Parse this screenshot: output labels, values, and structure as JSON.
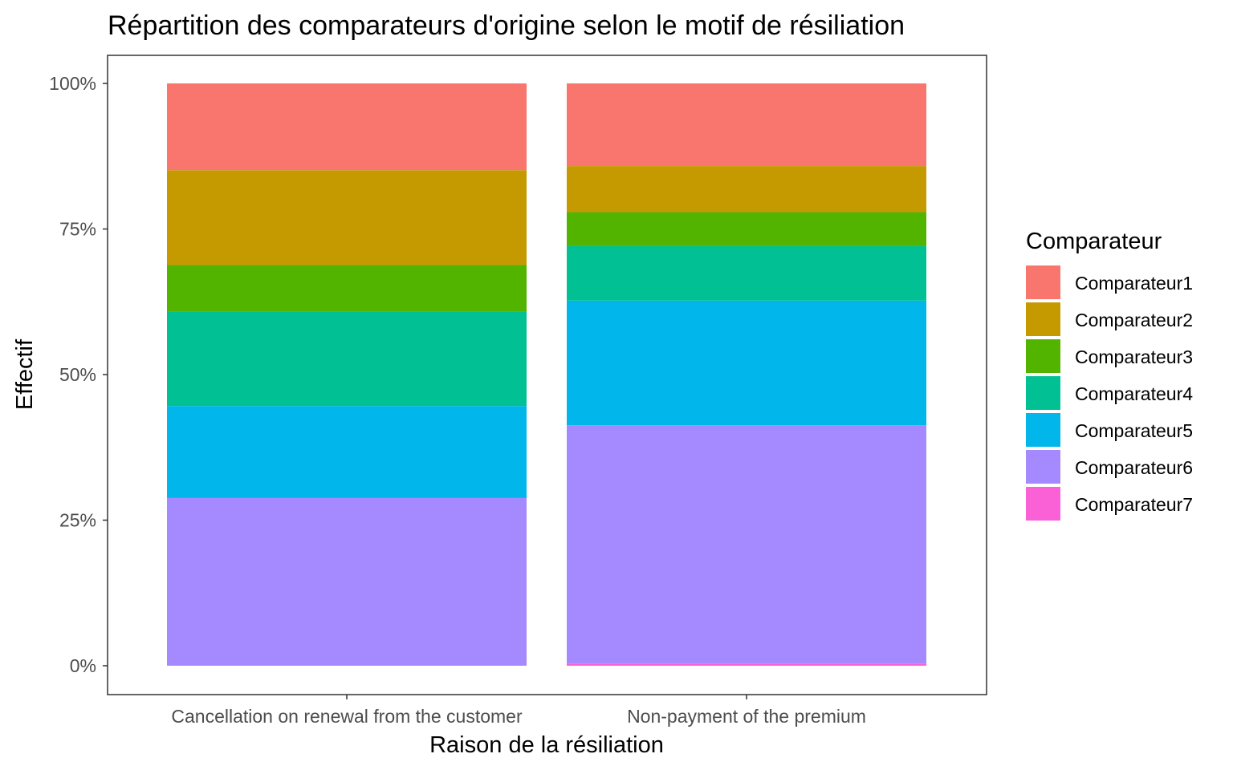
{
  "chart_data": {
    "type": "bar",
    "stacked": "percent",
    "title": "Répartition des comparateurs d'origine selon le motif de résiliation",
    "xlabel": "Raison de la résiliation",
    "ylabel": "Effectif",
    "ylim": [
      0,
      1
    ],
    "yticks": [
      {
        "value": 0,
        "label": "0%"
      },
      {
        "value": 0.25,
        "label": "25%"
      },
      {
        "value": 0.5,
        "label": "50%"
      },
      {
        "value": 0.75,
        "label": "75%"
      },
      {
        "value": 1,
        "label": "100%"
      }
    ],
    "grid": false,
    "legend": {
      "title": "Comparateur",
      "position": "right"
    },
    "categories": [
      "Cancellation on renewal from the customer",
      "Non-payment of the premium"
    ],
    "series": [
      {
        "name": "Comparateur1",
        "color": "#F8766D",
        "values": [
          0.149,
          0.142
        ]
      },
      {
        "name": "Comparateur2",
        "color": "#C49A00",
        "values": [
          0.163,
          0.079
        ]
      },
      {
        "name": "Comparateur3",
        "color": "#53B400",
        "values": [
          0.08,
          0.058
        ]
      },
      {
        "name": "Comparateur4",
        "color": "#00C094",
        "values": [
          0.162,
          0.094
        ]
      },
      {
        "name": "Comparateur5",
        "color": "#00B6EB",
        "values": [
          0.158,
          0.214
        ]
      },
      {
        "name": "Comparateur6",
        "color": "#A58AFF",
        "values": [
          0.288,
          0.41
        ]
      },
      {
        "name": "Comparateur7",
        "color": "#FB61D7",
        "values": [
          0.0,
          0.003
        ]
      }
    ]
  }
}
